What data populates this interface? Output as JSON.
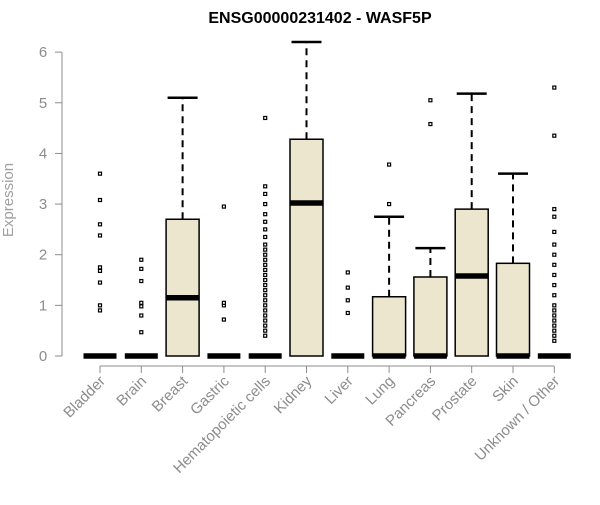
{
  "chart_data": {
    "type": "box",
    "title": "ENSG00000231402 - WASF5P",
    "xlabel": "",
    "ylabel": "Expression",
    "ylim": [
      0,
      6.2
    ],
    "yticks": [
      "0",
      "1",
      "2",
      "3",
      "4",
      "5",
      "6"
    ],
    "grid": false,
    "legend": "none",
    "colors": {
      "box_fill": "#ede6cf",
      "box_stroke": "#000000",
      "axis": "#8c8c8c"
    },
    "categories": [
      "Bladder",
      "Brain",
      "Breast",
      "Gastric",
      "Hematopoietic cells",
      "Kidney",
      "Liver",
      "Lung",
      "Pancreas",
      "Prostate",
      "Skin",
      "Unknown / Other"
    ],
    "boxes": [
      {
        "category": "Bladder",
        "q1": 0,
        "median": 0,
        "q3": 0,
        "whisker_low": 0,
        "whisker_high": 0,
        "outliers": [
          0.9,
          1.0,
          1.45,
          1.68,
          1.75,
          2.38,
          2.6,
          3.08,
          3.6
        ]
      },
      {
        "category": "Brain",
        "q1": 0,
        "median": 0,
        "q3": 0,
        "whisker_low": 0,
        "whisker_high": 0,
        "outliers": [
          0.47,
          0.8,
          0.98,
          1.05,
          1.48,
          1.72,
          1.9
        ]
      },
      {
        "category": "Breast",
        "q1": 0,
        "median": 1.15,
        "q3": 2.7,
        "whisker_low": 0,
        "whisker_high": 5.1,
        "outliers": []
      },
      {
        "category": "Gastric",
        "q1": 0,
        "median": 0,
        "q3": 0,
        "whisker_low": 0,
        "whisker_high": 0,
        "outliers": [
          0.72,
          1.0,
          1.05,
          2.95
        ]
      },
      {
        "category": "Hematopoietic cells",
        "q1": 0,
        "median": 0,
        "q3": 0,
        "whisker_low": 0,
        "whisker_high": 0,
        "outliers": [
          0.4,
          0.5,
          0.6,
          0.7,
          0.8,
          0.9,
          1.0,
          1.1,
          1.2,
          1.3,
          1.4,
          1.5,
          1.6,
          1.7,
          1.8,
          1.9,
          2.0,
          2.1,
          2.2,
          2.35,
          2.5,
          2.65,
          2.8,
          3.0,
          3.2,
          3.35,
          4.7
        ]
      },
      {
        "category": "Kidney",
        "q1": 0,
        "median": 3.02,
        "q3": 4.28,
        "whisker_low": 0,
        "whisker_high": 6.2,
        "outliers": []
      },
      {
        "category": "Liver",
        "q1": 0,
        "median": 0,
        "q3": 0,
        "whisker_low": 0,
        "whisker_high": 0,
        "outliers": [
          0.85,
          1.1,
          1.35,
          1.65
        ]
      },
      {
        "category": "Lung",
        "q1": 0,
        "median": 0,
        "q3": 1.17,
        "whisker_low": 0,
        "whisker_high": 2.75,
        "outliers": [
          3.0,
          3.78
        ]
      },
      {
        "category": "Pancreas",
        "q1": 0,
        "median": 0,
        "q3": 1.56,
        "whisker_low": 0,
        "whisker_high": 2.13,
        "outliers": [
          4.58,
          5.05
        ]
      },
      {
        "category": "Prostate",
        "q1": 0,
        "median": 1.58,
        "q3": 2.9,
        "whisker_low": 0,
        "whisker_high": 5.18,
        "outliers": []
      },
      {
        "category": "Skin",
        "q1": 0,
        "median": 0,
        "q3": 1.83,
        "whisker_low": 0,
        "whisker_high": 3.6,
        "outliers": []
      },
      {
        "category": "Unknown / Other",
        "q1": 0,
        "median": 0,
        "q3": 0,
        "whisker_low": 0,
        "whisker_high": 0,
        "outliers": [
          0.3,
          0.4,
          0.5,
          0.6,
          0.7,
          0.8,
          0.9,
          1.0,
          1.2,
          1.4,
          1.6,
          1.8,
          2.0,
          2.2,
          2.45,
          2.75,
          2.9,
          4.35,
          5.3
        ]
      }
    ]
  }
}
